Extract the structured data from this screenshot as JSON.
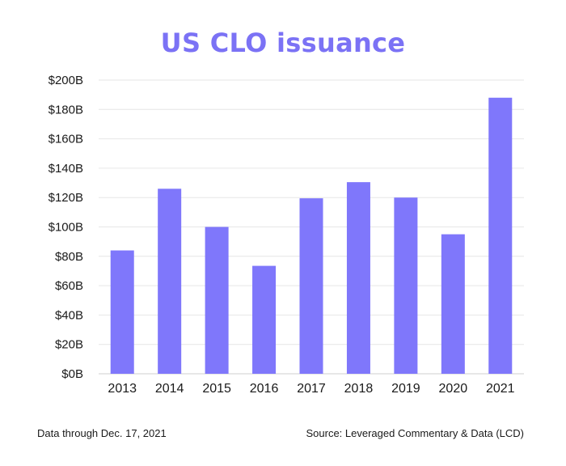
{
  "chart_data": {
    "type": "bar",
    "title": "US CLO issuance",
    "categories": [
      "2013",
      "2014",
      "2015",
      "2016",
      "2017",
      "2018",
      "2019",
      "2020",
      "2021"
    ],
    "values": [
      84,
      126,
      100,
      73.5,
      119.5,
      130.5,
      120,
      95,
      188
    ],
    "value_unit": "$B",
    "ylim": [
      0,
      200
    ],
    "yticks": [
      0,
      20,
      40,
      60,
      80,
      100,
      120,
      140,
      160,
      180,
      200
    ],
    "ytick_labels": [
      "$0B",
      "$20B",
      "$40B",
      "$60B",
      "$80B",
      "$100B",
      "$120B",
      "$140B",
      "$160B",
      "$180B",
      "$200B"
    ],
    "xlabel": "",
    "ylabel": "",
    "grid": "horizontal",
    "legend": "none",
    "bar_color": "#7f77fb",
    "title_color": "#7b72f5",
    "grid_color": "#e6e6e6"
  },
  "footer": {
    "note": "Data through Dec. 17, 2021",
    "source": "Source: Leveraged Commentary & Data (LCD)"
  }
}
